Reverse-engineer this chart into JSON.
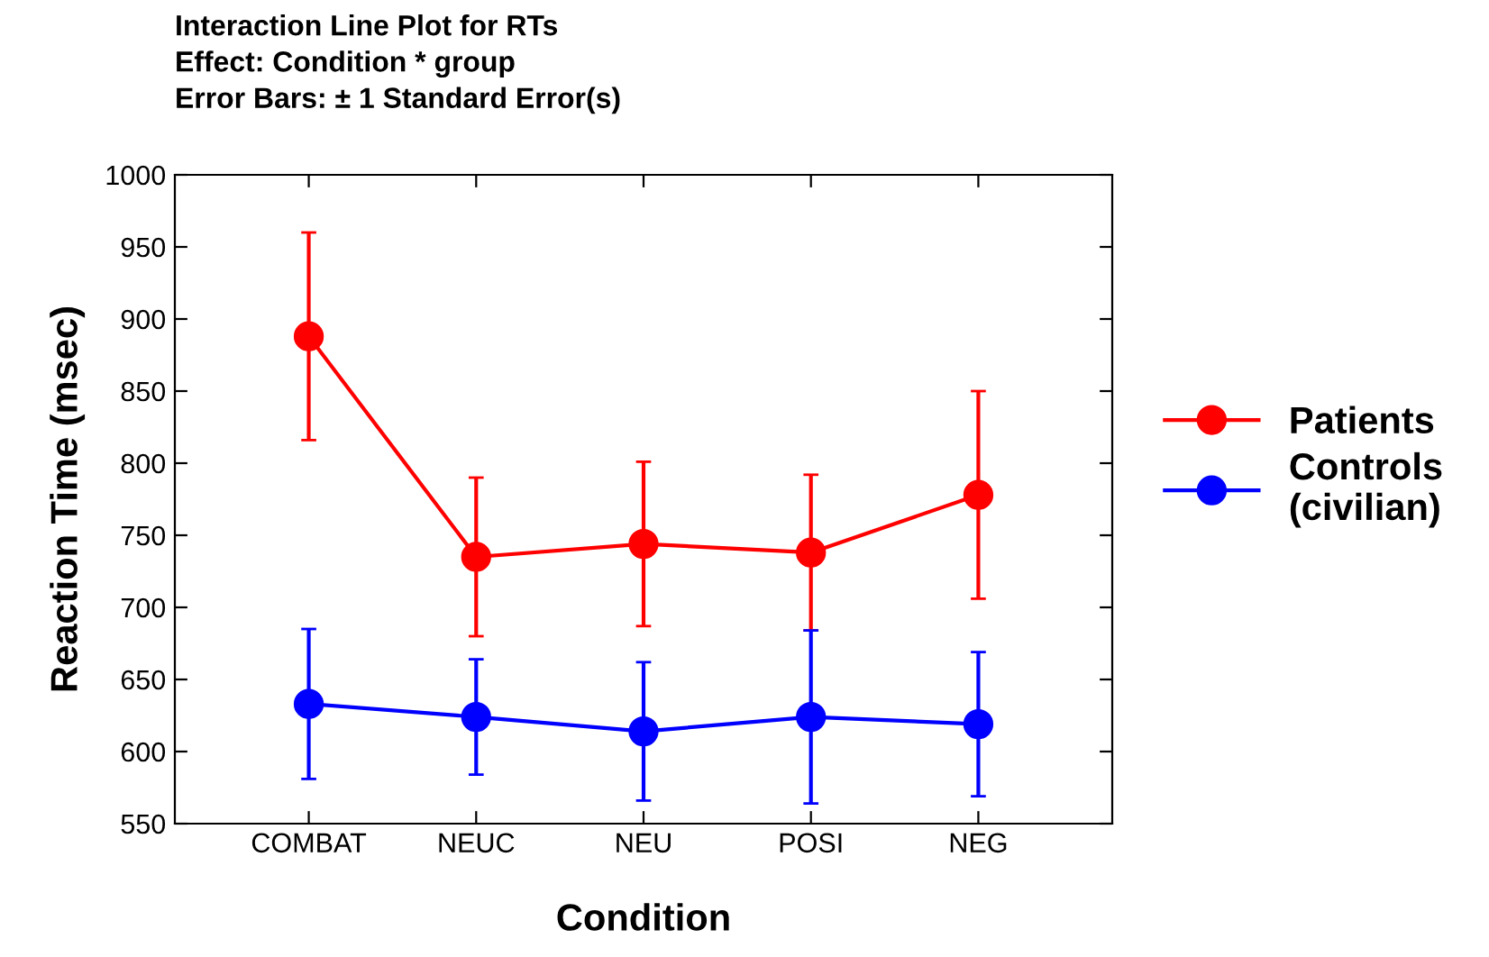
{
  "chart_data": {
    "type": "line",
    "title": "Interaction Line Plot for RTs\nEffect: Condition * group\nError Bars: ± 1 Standard Error(s)",
    "xlabel": "Condition",
    "ylabel": "Reaction Time (msec)",
    "categories": [
      "COMBAT",
      "NEUC",
      "NEU",
      "POSI",
      "NEG"
    ],
    "series": [
      {
        "name": "Patients",
        "color": "#ff0000",
        "values": [
          888,
          735,
          744,
          738,
          778
        ],
        "errors": [
          72,
          55,
          57,
          54,
          72
        ]
      },
      {
        "name": "Controls\n(civilian)",
        "color": "#0000ff",
        "values": [
          633,
          624,
          614,
          624,
          619
        ],
        "errors": [
          52,
          40,
          48,
          60,
          50
        ]
      }
    ],
    "ylim": [
      550,
      1000
    ],
    "yticks": [
      550,
      600,
      650,
      700,
      750,
      800,
      850,
      900,
      950,
      1000
    ],
    "grid": false,
    "legend": "right",
    "marker": "circle",
    "line_style": "solid"
  }
}
